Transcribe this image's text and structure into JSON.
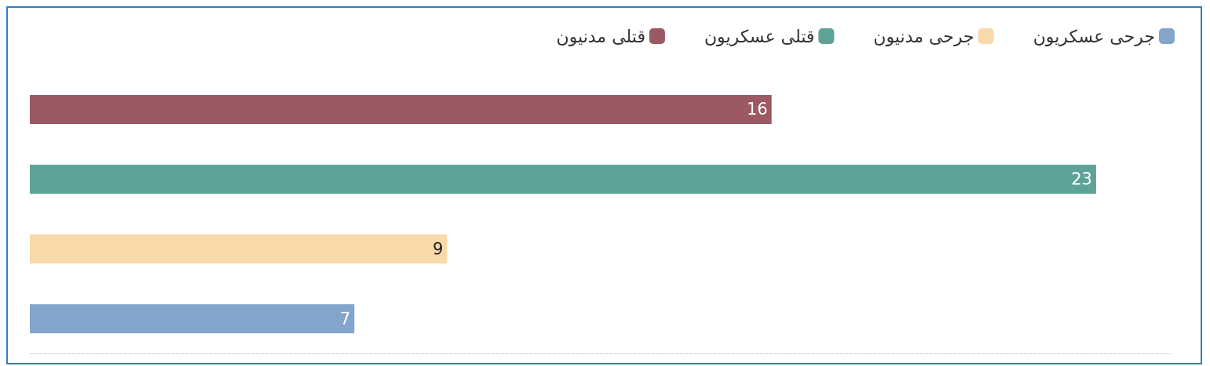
{
  "chart_data": {
    "type": "bar",
    "orientation": "horizontal",
    "stacked": true,
    "categories": [
      null,
      null,
      null,
      null
    ],
    "data_labels": true,
    "legend": "top right",
    "series": [
      {
        "name": "قتلى مدنيون",
        "color": "#9b5963",
        "values": [
          16,
          null,
          null,
          null
        ]
      },
      {
        "name": "قتلى عسكريون",
        "color": "#5fa398",
        "values": [
          null,
          23,
          null,
          null
        ]
      },
      {
        "name": "جرحى مدنيون",
        "color": "#f8d9aa",
        "values": [
          null,
          null,
          9,
          null
        ]
      },
      {
        "name": "جرحى عسكريون",
        "color": "#83a5cc",
        "values": [
          null,
          null,
          null,
          7
        ]
      }
    ]
  }
}
